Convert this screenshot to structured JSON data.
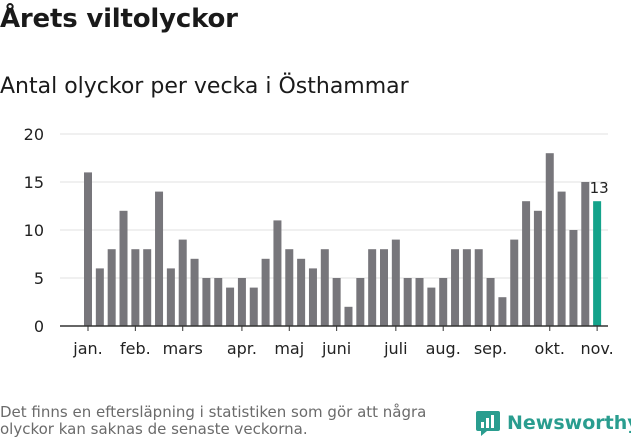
{
  "title": "Årets viltolyckor",
  "subtitle": "Antal olyckor per vecka i Östhammar",
  "footnote": "Det finns en eftersläpning i statistiken som gör att några olyckor kan saknas de senaste veckorna.",
  "brand": {
    "name": "Newsworthy",
    "icon": "newsworthy-logo-icon"
  },
  "colors": {
    "bar": "#77767b",
    "highlight": "#14a38b",
    "grid": "#e0e0e0",
    "axis": "#333333"
  },
  "chart_data": {
    "type": "bar",
    "title": "Antal olyckor per vecka i Östhammar",
    "xlabel": "",
    "ylabel": "",
    "ylim": [
      0,
      20
    ],
    "yticks": [
      0,
      5,
      10,
      15,
      20
    ],
    "grid": true,
    "categories": [
      1,
      2,
      3,
      4,
      5,
      6,
      7,
      8,
      9,
      10,
      11,
      12,
      13,
      14,
      15,
      16,
      17,
      18,
      19,
      20,
      21,
      22,
      23,
      24,
      25,
      26,
      27,
      28,
      29,
      30,
      31,
      32,
      33,
      34,
      35,
      36,
      37,
      38,
      39,
      40,
      41,
      42,
      43,
      44
    ],
    "values": [
      16,
      6,
      8,
      12,
      8,
      8,
      14,
      6,
      9,
      7,
      5,
      5,
      4,
      5,
      4,
      7,
      11,
      8,
      7,
      6,
      8,
      5,
      2,
      5,
      8,
      8,
      9,
      5,
      5,
      4,
      5,
      8,
      8,
      8,
      5,
      3,
      9,
      13,
      12,
      18,
      14,
      10,
      15,
      13
    ],
    "highlight_index": 43,
    "highlight_label": "13",
    "month_labels": [
      {
        "label": "jan.",
        "week": 1
      },
      {
        "label": "feb.",
        "week": 5
      },
      {
        "label": "mars",
        "week": 9
      },
      {
        "label": "apr.",
        "week": 14
      },
      {
        "label": "maj",
        "week": 18
      },
      {
        "label": "juni",
        "week": 22
      },
      {
        "label": "juli",
        "week": 27
      },
      {
        "label": "aug.",
        "week": 31
      },
      {
        "label": "sep.",
        "week": 35
      },
      {
        "label": "okt.",
        "week": 40
      },
      {
        "label": "nov.",
        "week": 44
      }
    ]
  }
}
